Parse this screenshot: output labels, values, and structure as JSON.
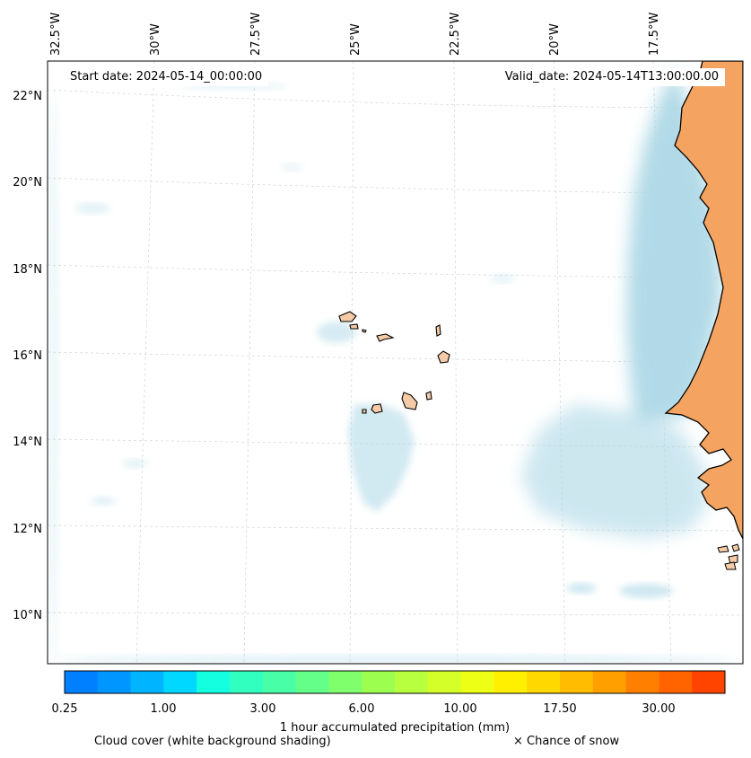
{
  "map": {
    "start_date": "Start date: 2024-05-14_00:00:00",
    "valid_date": "Valid_date: 2024-05-14T13:00:00.00",
    "lat_labels": [
      "22°N",
      "20°N",
      "18°N",
      "16°N",
      "14°N",
      "12°N",
      "10°N"
    ],
    "lon_labels": [
      "32.5°W",
      "30°W",
      "27.5°W",
      "25°W",
      "22.5°W",
      "20°W",
      "17.5°W"
    ],
    "colors": {
      "land": "#f4a460",
      "island": "#f5cba7",
      "cloud": "#add8e6",
      "coast": "#000000",
      "grid": "#cccccc"
    }
  },
  "colorbar": {
    "label": "1 hour accumulated precipitation (mm)",
    "tick_labels": [
      "0.25",
      "1.00",
      "3.00",
      "6.00",
      "10.00",
      "17.50",
      "30.00"
    ],
    "colors": [
      "#0080ff",
      "#0096ff",
      "#00b4ff",
      "#00d8ff",
      "#14ffe0",
      "#30ffc0",
      "#48ffa8",
      "#64ff88",
      "#80ff6c",
      "#9cff50",
      "#b8ff40",
      "#d4ff28",
      "#ecff14",
      "#fff000",
      "#ffd800",
      "#ffbc00",
      "#ffa000",
      "#ff8000",
      "#ff6400",
      "#ff4400"
    ]
  },
  "legend": {
    "cloud_text": "Cloud cover (white background shading)",
    "snow_text": "× Chance of snow"
  }
}
